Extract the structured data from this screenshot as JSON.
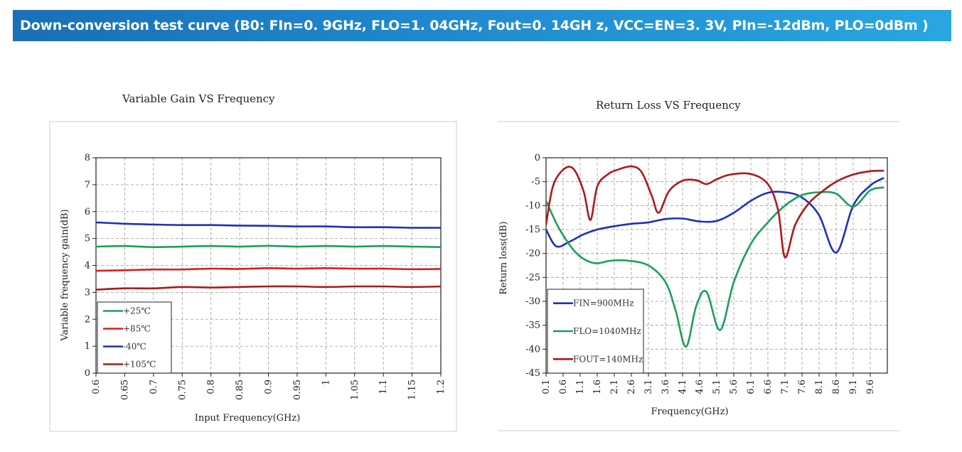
{
  "banner": {
    "title": "Down-conversion test curve (B0: FIn=0. 9GHz, FLO=1. 04GHz, Fout=0. 14GH z,  VCC=EN=3. 3V, PIn=-12dBm, PLO=0dBm )"
  },
  "chart_data": [
    {
      "type": "line",
      "title": "Variable Gain VS Frequency",
      "xlabel": "Input Frequency(GHz)",
      "ylabel": "Variable frequency gain(dB)",
      "xlim": [
        0.6,
        1.2
      ],
      "ylim": [
        0,
        8
      ],
      "x_ticks": [
        "0.6",
        "0.65",
        "0.7",
        "0.75",
        "0.8",
        "0.85",
        "0.9",
        "0.95",
        "1",
        "1.05",
        "1.1",
        "1.15",
        "1.2"
      ],
      "y_ticks": [
        "0",
        "1",
        "2",
        "3",
        "4",
        "5",
        "6",
        "7",
        "8"
      ],
      "grid": true,
      "legend_position": "bottom-left",
      "series": [
        {
          "name": "+25℃",
          "color": "#1aa05a",
          "x": [
            0.6,
            0.65,
            0.7,
            0.75,
            0.8,
            0.85,
            0.9,
            0.95,
            1.0,
            1.05,
            1.1,
            1.15,
            1.2
          ],
          "y": [
            4.7,
            4.72,
            4.68,
            4.7,
            4.72,
            4.7,
            4.73,
            4.7,
            4.72,
            4.7,
            4.72,
            4.7,
            4.68
          ]
        },
        {
          "name": "+85℃",
          "color": "#d42020",
          "x": [
            0.6,
            0.65,
            0.7,
            0.75,
            0.8,
            0.85,
            0.9,
            0.95,
            1.0,
            1.05,
            1.1,
            1.15,
            1.2
          ],
          "y": [
            3.8,
            3.82,
            3.85,
            3.85,
            3.88,
            3.87,
            3.9,
            3.88,
            3.9,
            3.88,
            3.88,
            3.86,
            3.87
          ]
        },
        {
          "name": "-40℃",
          "color": "#1e2fbf",
          "x": [
            0.6,
            0.65,
            0.7,
            0.75,
            0.8,
            0.85,
            0.9,
            0.95,
            1.0,
            1.05,
            1.1,
            1.15,
            1.2
          ],
          "y": [
            5.6,
            5.55,
            5.52,
            5.5,
            5.5,
            5.48,
            5.47,
            5.45,
            5.45,
            5.42,
            5.42,
            5.4,
            5.4
          ]
        },
        {
          "name": "+105℃",
          "color": "#b01818",
          "x": [
            0.6,
            0.65,
            0.7,
            0.75,
            0.8,
            0.85,
            0.9,
            0.95,
            1.0,
            1.05,
            1.1,
            1.15,
            1.2
          ],
          "y": [
            3.1,
            3.15,
            3.15,
            3.2,
            3.18,
            3.2,
            3.22,
            3.22,
            3.2,
            3.22,
            3.22,
            3.2,
            3.22
          ]
        }
      ]
    },
    {
      "type": "line",
      "title": "Return Loss VS Frequency",
      "xlabel": "Frequency(GHz)",
      "ylabel": "Return loss(dB)",
      "xlim": [
        0.1,
        10.1
      ],
      "ylim": [
        -45,
        0
      ],
      "x_ticks": [
        "0.1",
        "0.6",
        "1.1",
        "1.6",
        "2.1",
        "2.6",
        "3.1",
        "3.6",
        "4.1",
        "4.6",
        "5.1",
        "5.6",
        "6.1",
        "6.6",
        "7.1",
        "7.6",
        "8.1",
        "8.6",
        "9.1",
        "9.6"
      ],
      "y_ticks": [
        "0",
        "-5",
        "-10",
        "-15",
        "-20",
        "-25",
        "-30",
        "-35",
        "-40",
        "-45"
      ],
      "grid": true,
      "legend_position": "bottom-left",
      "series": [
        {
          "name": "FIN=900MHz",
          "color": "#1e2fbf",
          "x": [
            0.1,
            0.4,
            0.8,
            1.2,
            1.6,
            2.1,
            2.6,
            3.1,
            3.6,
            4.1,
            4.6,
            5.1,
            5.6,
            6.1,
            6.6,
            7.1,
            7.6,
            8.1,
            8.6,
            9.1,
            9.6,
            10.0
          ],
          "y": [
            -15,
            -18.5,
            -17.5,
            -16,
            -15,
            -14.3,
            -13.8,
            -13.5,
            -12.8,
            -12.7,
            -13.3,
            -13.2,
            -11.5,
            -9,
            -7.3,
            -7.2,
            -8.3,
            -12,
            -19.8,
            -10,
            -5.8,
            -4.2
          ]
        },
        {
          "name": "FLO=1040MHz",
          "color": "#1aa05a",
          "x": [
            0.1,
            0.5,
            1.0,
            1.5,
            2.0,
            2.5,
            3.1,
            3.6,
            3.9,
            4.2,
            4.5,
            4.8,
            5.2,
            5.6,
            6.1,
            6.6,
            7.1,
            7.6,
            8.1,
            8.6,
            9.1,
            9.6,
            10.0
          ],
          "y": [
            -9,
            -15,
            -20,
            -22,
            -21.5,
            -21.5,
            -22.5,
            -26,
            -32,
            -39.5,
            -31,
            -28,
            -36,
            -26,
            -18,
            -13.5,
            -10,
            -7.8,
            -7.2,
            -7.5,
            -10.2,
            -6.8,
            -6.2
          ]
        },
        {
          "name": "FOUT=140MHz",
          "color": "#b01818",
          "x": [
            0.1,
            0.3,
            0.6,
            0.9,
            1.2,
            1.4,
            1.6,
            1.9,
            2.2,
            2.6,
            2.9,
            3.2,
            3.4,
            3.7,
            4.1,
            4.5,
            4.8,
            5.1,
            5.5,
            6.1,
            6.6,
            6.9,
            7.1,
            7.4,
            7.8,
            8.2,
            8.6,
            9.1,
            9.6,
            10.0
          ],
          "y": [
            -14,
            -6,
            -2.5,
            -2.3,
            -7,
            -13,
            -6,
            -3.5,
            -2.5,
            -1.8,
            -3,
            -8,
            -11.5,
            -7,
            -4.8,
            -4.7,
            -5.5,
            -4.5,
            -3.5,
            -3.4,
            -5.5,
            -11,
            -20.8,
            -14,
            -9.5,
            -7,
            -5,
            -3.5,
            -2.8,
            -2.7
          ]
        }
      ]
    }
  ]
}
